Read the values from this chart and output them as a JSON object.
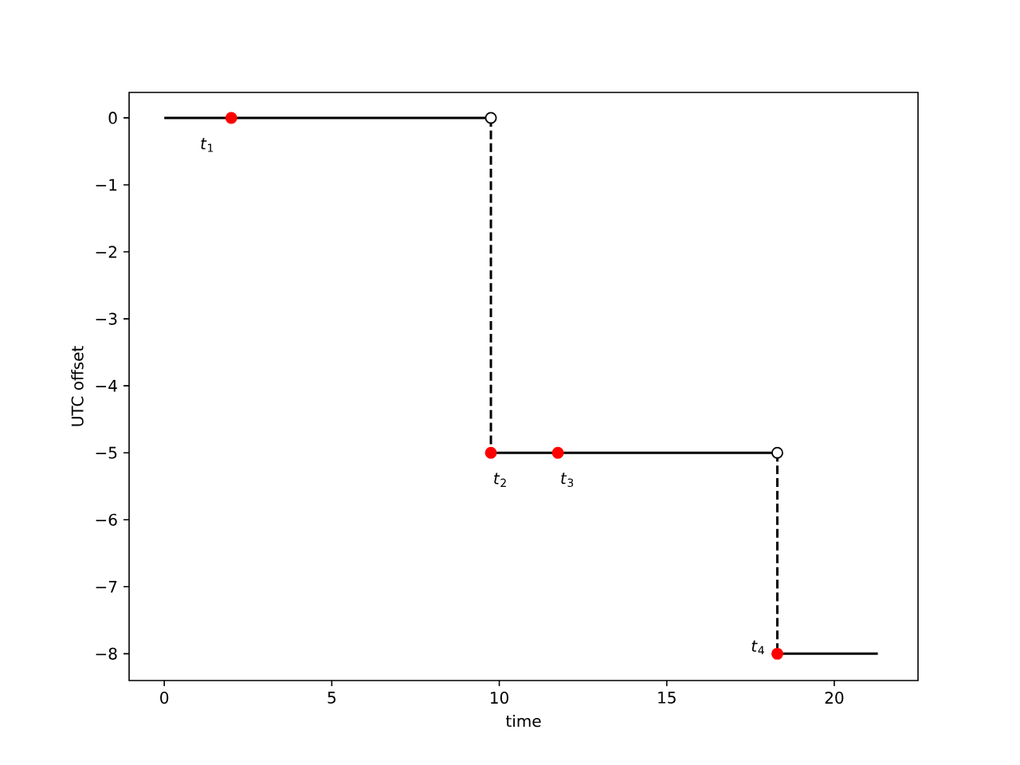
{
  "chart_data": {
    "type": "line",
    "xlabel": "time",
    "ylabel": "UTC offset",
    "xlim": [
      -1.05,
      22.5
    ],
    "ylim": [
      -8.4,
      0.38
    ],
    "xticks": [
      0,
      5,
      10,
      15,
      20
    ],
    "yticks": [
      {
        "value": 0,
        "label": "0"
      },
      {
        "value": -1,
        "label": "−1"
      },
      {
        "value": -2,
        "label": "−2"
      },
      {
        "value": -3,
        "label": "−3"
      },
      {
        "value": -4,
        "label": "−4"
      },
      {
        "value": -5,
        "label": "−5"
      },
      {
        "value": -6,
        "label": "−6"
      },
      {
        "value": -7,
        "label": "−7"
      },
      {
        "value": -8,
        "label": "−8"
      }
    ],
    "series": [
      {
        "color": "#000000",
        "line_style": "solid",
        "marker": "none",
        "x": [
          0,
          9.75
        ],
        "values": [
          0,
          0
        ]
      },
      {
        "color": "#000000",
        "line_style": "dashed",
        "marker": "none",
        "x": [
          9.75,
          9.75
        ],
        "values": [
          0,
          -5
        ]
      },
      {
        "color": "#000000",
        "line_style": "solid",
        "marker": "none",
        "x": [
          9.75,
          18.3
        ],
        "values": [
          -5,
          -5
        ]
      },
      {
        "color": "#000000",
        "line_style": "dashed",
        "marker": "none",
        "x": [
          18.3,
          18.3
        ],
        "values": [
          -5,
          -8
        ]
      },
      {
        "color": "#000000",
        "line_style": "solid",
        "marker": "none",
        "x": [
          18.3,
          21.3
        ],
        "values": [
          -8,
          -8
        ]
      },
      {
        "type": "scatter",
        "color": "#ffffff",
        "marker": "circle",
        "x": [
          9.75,
          18.3
        ],
        "values": [
          0,
          -5
        ]
      },
      {
        "type": "scatter",
        "color": "#ff0000",
        "marker": "circle",
        "x": [
          2,
          9.75,
          11.75,
          18.3
        ],
        "values": [
          0,
          -5,
          -5,
          -8
        ]
      }
    ],
    "annotations": [
      {
        "text": "*t*$_{1}$",
        "x": 2,
        "y": 0
      },
      {
        "text": "*t*$_{2}$",
        "x": 9.75,
        "y": -5
      },
      {
        "text": "*t*$_{3}$",
        "x": 11.75,
        "y": -5
      },
      {
        "text": "*t*$_{4}$",
        "x": 18.3,
        "y": -8
      }
    ]
  }
}
